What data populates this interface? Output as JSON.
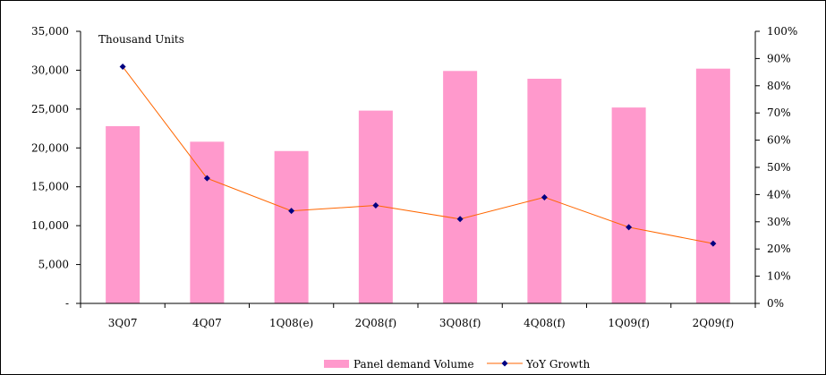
{
  "chart_data": {
    "type": "bar",
    "categories": [
      "3Q07",
      "4Q07",
      "1Q08(e)",
      "2Q08(f)",
      "3Q08(f)",
      "4Q08(f)",
      "1Q09(f)",
      "2Q09(f)"
    ],
    "series": [
      {
        "name": "Panel demand Volume",
        "type": "bar",
        "axis": "left",
        "color": "#ff99cc",
        "values": [
          22800,
          20800,
          19600,
          24800,
          29900,
          28900,
          25200,
          30200
        ]
      },
      {
        "name": "YoY Growth",
        "type": "line",
        "axis": "right",
        "line_color": "#ff6600",
        "marker_color": "#000080",
        "values": [
          87,
          46,
          34,
          36,
          31,
          39,
          28,
          22
        ]
      }
    ],
    "unit_label": "Thousand Units",
    "y_left": {
      "min": 0,
      "max": 35000,
      "ticks": [
        0,
        5000,
        10000,
        15000,
        20000,
        25000,
        30000,
        35000
      ],
      "tick_labels": [
        "-",
        "5,000",
        "10,000",
        "15,000",
        "20,000",
        "25,000",
        "30,000",
        "35,000"
      ]
    },
    "y_right": {
      "min": 0,
      "max": 100,
      "ticks": [
        0,
        10,
        20,
        30,
        40,
        50,
        60,
        70,
        80,
        90,
        100
      ],
      "tick_labels": [
        "0%",
        "10%",
        "20%",
        "30%",
        "40%",
        "50%",
        "60%",
        "70%",
        "80%",
        "90%",
        "100%"
      ]
    },
    "grid": false,
    "legend_position": "bottom"
  }
}
